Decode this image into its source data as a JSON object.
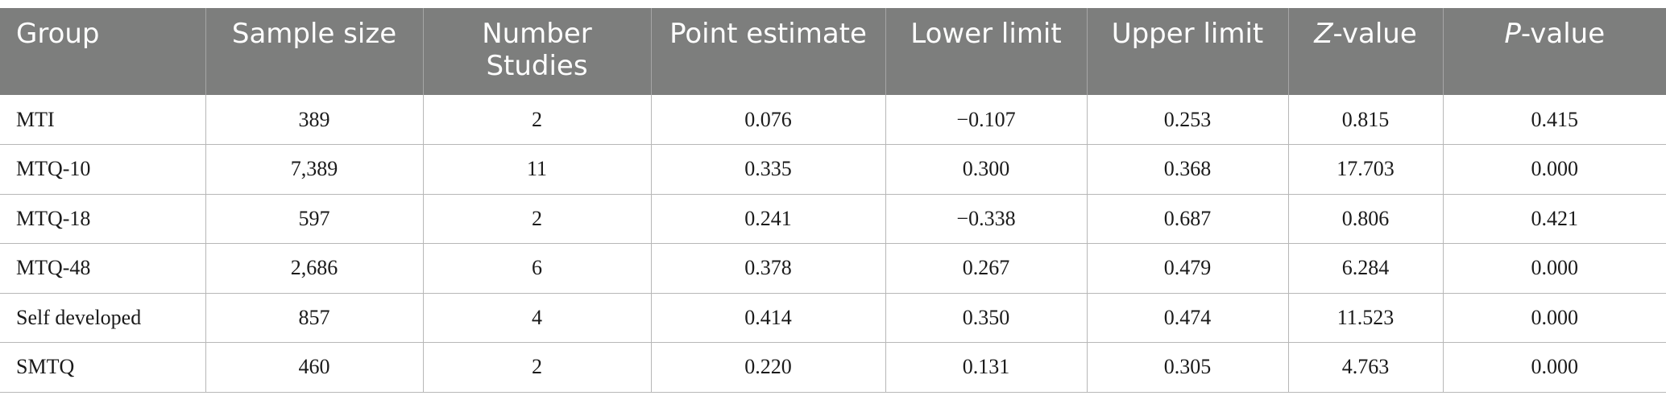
{
  "table": {
    "headers": [
      {
        "text": "Group"
      },
      {
        "text": "Sample size"
      },
      {
        "text": "Number Studies"
      },
      {
        "text": "Point estimate"
      },
      {
        "text": "Lower limit"
      },
      {
        "text": "Upper limit"
      },
      {
        "prefix": "Z",
        "suffix": "-value"
      },
      {
        "prefix": "P",
        "suffix": "-value"
      }
    ],
    "rows": [
      [
        "MTI",
        "389",
        "2",
        "0.076",
        "−0.107",
        "0.253",
        "0.815",
        "0.415"
      ],
      [
        "MTQ-10",
        "7,389",
        "11",
        "0.335",
        "0.300",
        "0.368",
        "17.703",
        "0.000"
      ],
      [
        "MTQ-18",
        "597",
        "2",
        "0.241",
        "−0.338",
        "0.687",
        "0.806",
        "0.421"
      ],
      [
        "MTQ-48",
        "2,686",
        "6",
        "0.378",
        "0.267",
        "0.479",
        "6.284",
        "0.000"
      ],
      [
        "Self developed",
        "857",
        "4",
        "0.414",
        "0.350",
        "0.474",
        "11.523",
        "0.000"
      ],
      [
        "SMTQ",
        "460",
        "2",
        "0.220",
        "0.131",
        "0.305",
        "4.763",
        "0.000"
      ]
    ]
  }
}
